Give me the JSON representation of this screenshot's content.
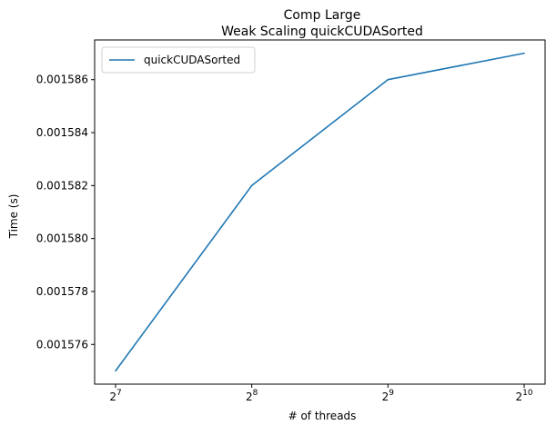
{
  "chart_data": {
    "type": "line",
    "title": "Comp Large",
    "subtitle": "Weak Scaling quickCUDASorted",
    "xlabel": "# of threads",
    "ylabel": "Time (s)",
    "x_scale": "log2",
    "x_ticks": [
      {
        "value": 128,
        "base": "2",
        "exp": "7"
      },
      {
        "value": 256,
        "base": "2",
        "exp": "8"
      },
      {
        "value": 512,
        "base": "2",
        "exp": "9"
      },
      {
        "value": 1024,
        "base": "2",
        "exp": "10"
      }
    ],
    "y_ticks": [
      "0.001576",
      "0.001578",
      "0.001580",
      "0.001582",
      "0.001584",
      "0.001586"
    ],
    "ylim": [
      0.0015745,
      0.0015875
    ],
    "xlim": [
      128,
      1024
    ],
    "grid": false,
    "legend_position": "top-left",
    "series": [
      {
        "name": "quickCUDASorted",
        "color": "#1f77b4",
        "x": [
          128,
          256,
          512,
          1024
        ],
        "y": [
          0.001575,
          0.001582,
          0.001586,
          0.001587
        ]
      }
    ]
  }
}
